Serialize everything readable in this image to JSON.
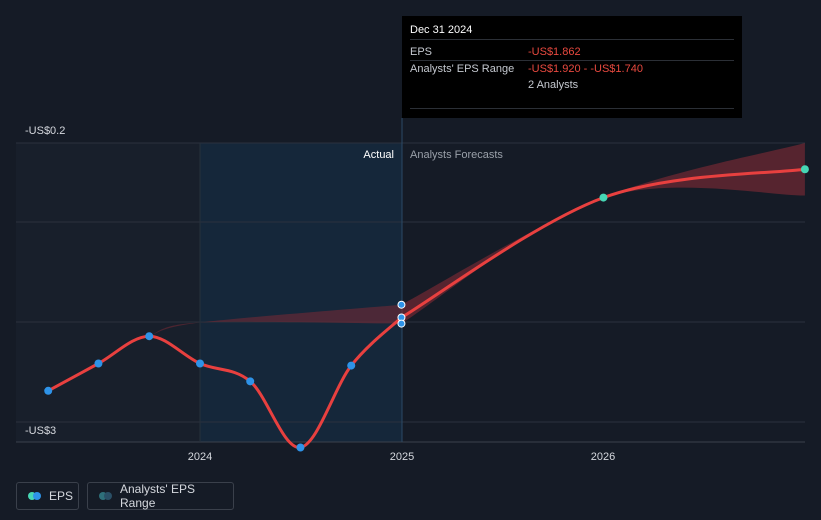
{
  "chart_data": {
    "type": "line",
    "ylabel_top": "-US$0.2",
    "ylabel_bottom": "-US$3",
    "ylim": [
      -3,
      -0.2
    ],
    "divider_labels": {
      "actual": "Actual",
      "forecast": "Analysts Forecasts"
    },
    "x_ticks": [
      "2024",
      "2025",
      "2026"
    ],
    "series": [
      {
        "name": "EPS",
        "x": [
          "2023-04-01",
          "2023-07-01",
          "2023-10-01",
          "2024-01-01",
          "2024-04-01",
          "2024-07-01",
          "2024-10-01",
          "2024-12-31"
        ],
        "values": [
          -2.56,
          -2.3,
          -2.04,
          -2.3,
          -2.47,
          -3.1,
          -2.32,
          -1.862
        ]
      },
      {
        "name": "Analysts Forecasts",
        "x": [
          "2024-12-31",
          "2026-01-01",
          "2027-01-01"
        ],
        "values": [
          -1.862,
          -0.72,
          -0.45
        ]
      }
    ],
    "forecast_range": {
      "x": [
        "2024-12-31",
        "2026-01-01",
        "2027-01-01"
      ],
      "high": [
        -1.74,
        -0.72,
        -0.2
      ],
      "low": [
        -1.92,
        -0.72,
        -0.7
      ]
    },
    "past_range": {
      "x": [
        "2023-10-01",
        "2024-01-01",
        "2024-12-31"
      ],
      "high": [
        -2.04,
        -1.91,
        -1.74
      ],
      "low": [
        -2.04,
        -1.91,
        -1.92
      ]
    },
    "grid": true,
    "colors": {
      "eps": "#2e93e8",
      "line": "#e8403f",
      "forecast_dot": "#46d6b4",
      "range": "#7a2a34"
    }
  },
  "tooltip": {
    "date": "Dec 31 2024",
    "eps_label": "EPS",
    "eps_value": "-US$1.862",
    "range_label": "Analysts' EPS Range",
    "range_value": "-US$1.920 - -US$1.740",
    "analysts": "2 Analysts"
  },
  "legend": {
    "eps": "EPS",
    "range": "Analysts' EPS Range"
  }
}
